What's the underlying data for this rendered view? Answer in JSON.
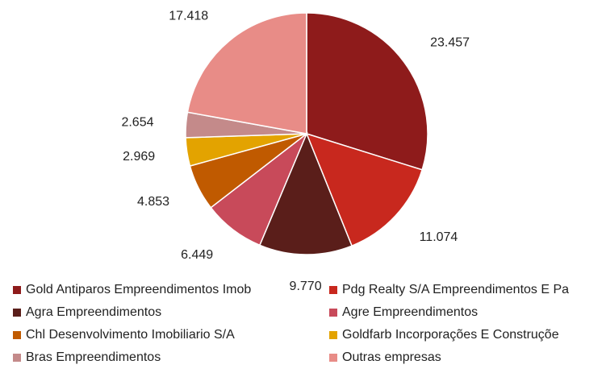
{
  "chart_data": {
    "type": "pie",
    "categories": [
      "Gold Antiparos Empreendimentos Imob",
      "Pdg Realty S/A Empreendimentos E Pa",
      "Agra Empreendimentos",
      "Agre Empreendimentos",
      "Chl Desenvolvimento Imobiliario S/A",
      "Goldfarb Incorporações E Construçõe",
      "Bras Empreendimentos",
      "Outras empresas"
    ],
    "values": [
      23457,
      11074,
      9770,
      6449,
      4853,
      2969,
      2654,
      17418
    ],
    "value_labels": [
      "23.457",
      "11.074",
      "9.770",
      "6.449",
      "4.853",
      "2.969",
      "2.654",
      "17.418"
    ],
    "colors": [
      "#8e1b1b",
      "#c8281e",
      "#5a1e1a",
      "#c84a5a",
      "#c05a00",
      "#e3a300",
      "#c48a8a",
      "#e88c87"
    ],
    "legend": "bottom"
  }
}
